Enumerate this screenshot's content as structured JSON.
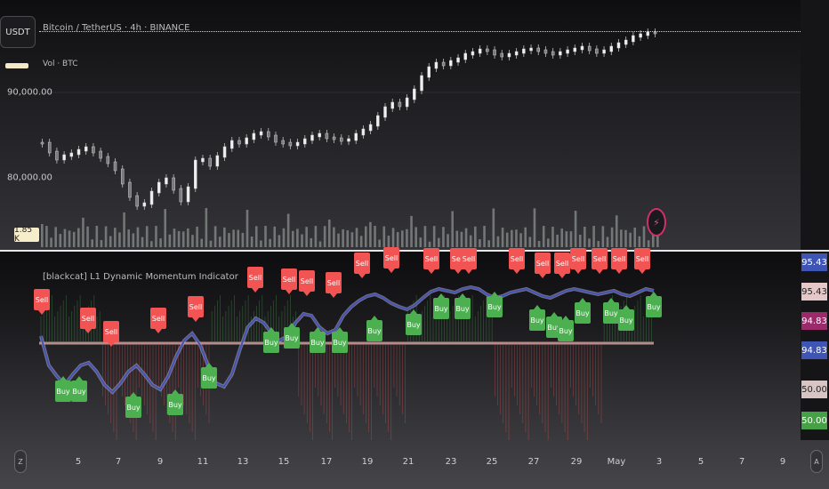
{
  "symbol": "USDT",
  "legend": {
    "title": "Bitcoin / TetherUS · 4h · BINANCE",
    "volume": "Vol · BTC"
  },
  "indicator": {
    "title": "[blackcat] L1 Dynamic Momentum Indicator"
  },
  "price_axis": {
    "ticks": [
      "90,000.00",
      "80,000.00"
    ],
    "volume_badge": "1.85 K"
  },
  "indicator_axis": {
    "badges": [
      {
        "value": "95.43",
        "color": "#3f55b5"
      },
      {
        "value": "95.43",
        "color": "#e6c7c7"
      },
      {
        "value": "94.83",
        "color": "#9a2a6a"
      },
      {
        "value": "94.83",
        "color": "#3f55b5"
      },
      {
        "value": "50.00",
        "color": "#d9c4c4"
      },
      {
        "value": "50.00",
        "color": "#46a046"
      }
    ]
  },
  "time_axis": {
    "labels": [
      "5",
      "7",
      "9",
      "11",
      "13",
      "15",
      "17",
      "19",
      "21",
      "23",
      "25",
      "27",
      "29",
      "May",
      "3",
      "5",
      "7",
      "9"
    ]
  },
  "controls": {
    "left": "Z",
    "right": "A"
  },
  "signals": {
    "sell_label": "Sell",
    "buy_label": "Buy"
  },
  "colors": {
    "sell": "#f25454",
    "buy": "#4caf50",
    "momentum": "#3f55b5",
    "signal": "#b9a4c8"
  }
}
